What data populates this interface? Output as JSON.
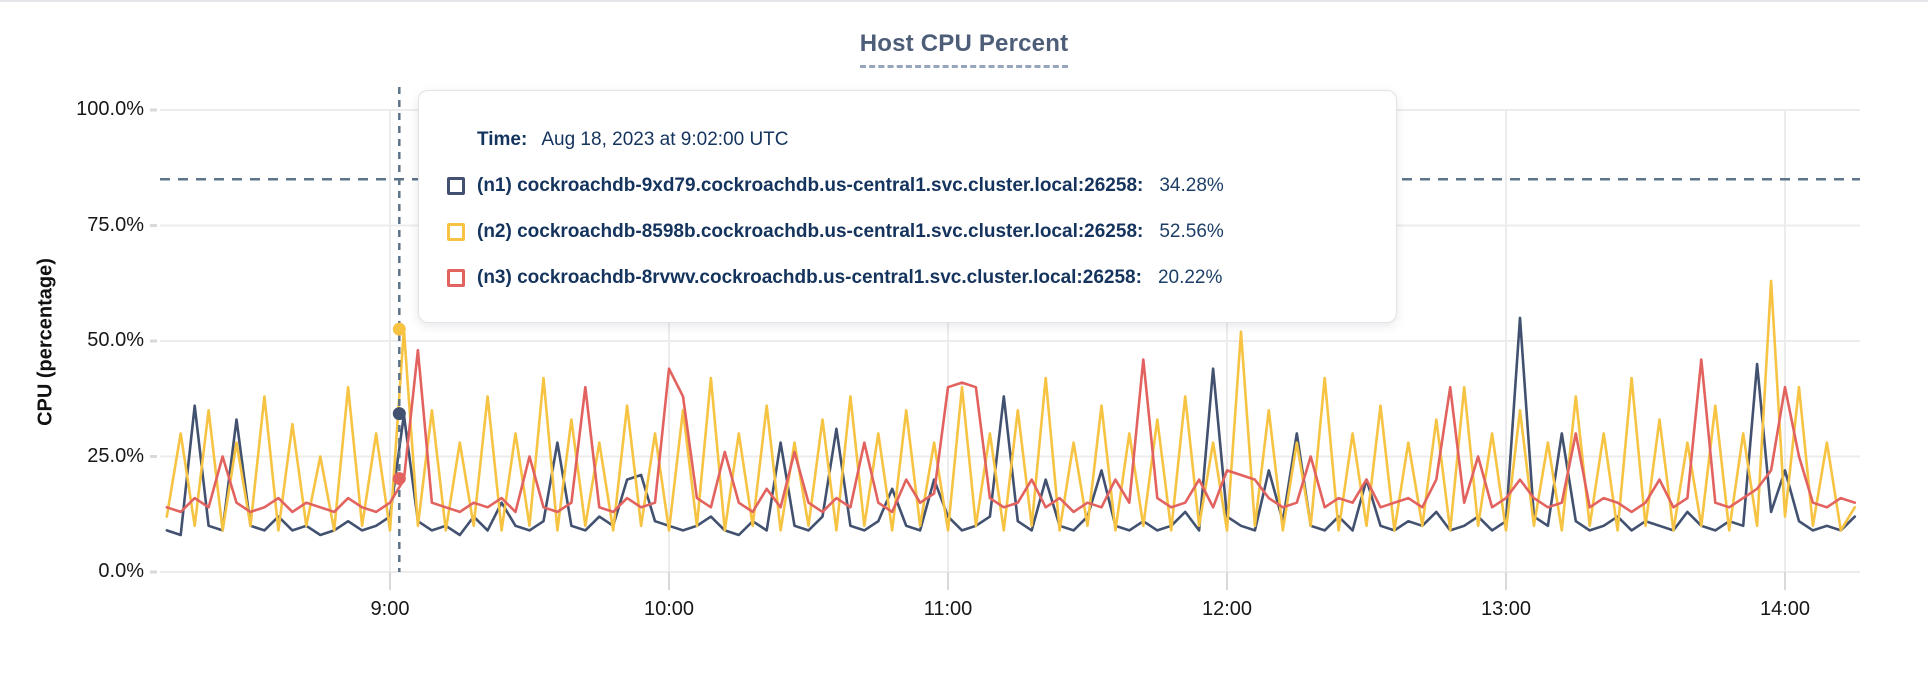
{
  "title": "Host CPU Percent",
  "y_axis": {
    "label": "CPU (percentage)",
    "ticks": [
      {
        "label": "0.0%",
        "value": 0
      },
      {
        "label": "25.0%",
        "value": 25
      },
      {
        "label": "50.0%",
        "value": 50
      },
      {
        "label": "75.0%",
        "value": 75
      },
      {
        "label": "100.0%",
        "value": 100
      }
    ]
  },
  "x_axis": {
    "ticks": [
      {
        "label": "9:00",
        "minutes": 540
      },
      {
        "label": "10:00",
        "minutes": 600
      },
      {
        "label": "11:00",
        "minutes": 660
      },
      {
        "label": "12:00",
        "minutes": 720
      },
      {
        "label": "13:00",
        "minutes": 780
      },
      {
        "label": "14:00",
        "minutes": 840
      }
    ]
  },
  "colors": {
    "n1": "#41516f",
    "n2": "#f6c343",
    "n3": "#e2625f",
    "grid": "#ececec",
    "tick": "#d9d9d9",
    "dashed_guide": "#5d7389",
    "tooltip_text": "#14335d",
    "title": "#4e5e79"
  },
  "threshold_percent": 85,
  "tooltip": {
    "time_label": "Time:",
    "time_value": "Aug 18, 2023 at 9:02:00 UTC",
    "rows": [
      {
        "series": "n1",
        "label": "(n1) cockroachdb-9xd79.cockroachdb.us-central1.svc.cluster.local:26258:",
        "value": "34.28%",
        "percent": 34.28,
        "color": "#41516f"
      },
      {
        "series": "n2",
        "label": "(n2) cockroachdb-8598b.cockroachdb.us-central1.svc.cluster.local:26258:",
        "value": "52.56%",
        "percent": 52.56,
        "color": "#f6c343"
      },
      {
        "series": "n3",
        "label": "(n3) cockroachdb-8rvwv.cockroachdb.us-central1.svc.cluster.local:26258:",
        "value": "20.22%",
        "percent": 20.22,
        "color": "#e2625f"
      }
    ]
  },
  "hover": {
    "time_minutes": 542
  },
  "chart_data": {
    "type": "line",
    "title": "Host CPU Percent",
    "xlabel": "",
    "ylabel": "CPU (percentage)",
    "ylim": [
      0,
      100
    ],
    "x_tick_labels": [
      "9:00",
      "10:00",
      "11:00",
      "12:00",
      "13:00",
      "14:00"
    ],
    "grid": true,
    "legend_position": "tooltip-overlay",
    "threshold_dashed_line_percent": 85,
    "hover_time_minutes": 542,
    "x_start_minutes": 492,
    "x_step_minutes": 3,
    "series": [
      {
        "name": "(n1) cockroachdb-9xd79.cockroachdb.us-central1.svc.cluster.local:26258",
        "color": "#41516f",
        "hover_value": 34.28,
        "values": [
          9,
          8,
          36,
          10,
          9,
          33,
          10,
          9,
          12,
          9,
          10,
          8,
          9,
          11,
          9,
          10,
          12,
          34,
          11,
          9,
          10,
          8,
          12,
          9,
          15,
          10,
          9,
          11,
          28,
          10,
          9,
          12,
          10,
          20,
          21,
          11,
          10,
          9,
          10,
          12,
          9,
          8,
          11,
          9,
          28,
          10,
          9,
          12,
          31,
          10,
          9,
          11,
          18,
          10,
          9,
          20,
          12,
          9,
          10,
          12,
          38,
          11,
          9,
          20,
          10,
          9,
          12,
          22,
          10,
          9,
          11,
          9,
          10,
          13,
          9,
          44,
          12,
          10,
          9,
          22,
          11,
          30,
          10,
          9,
          12,
          9,
          20,
          10,
          9,
          11,
          10,
          13,
          9,
          10,
          12,
          9,
          11,
          55,
          12,
          10,
          30,
          11,
          9,
          10,
          12,
          9,
          11,
          10,
          9,
          13,
          10,
          9,
          11,
          10,
          45,
          13,
          22,
          11,
          9,
          10,
          9,
          12
        ]
      },
      {
        "name": "(n2) cockroachdb-8598b.cockroachdb.us-central1.svc.cluster.local:26258",
        "color": "#f6c343",
        "hover_value": 52.56,
        "values": [
          12,
          30,
          10,
          35,
          9,
          28,
          10,
          38,
          9,
          32,
          10,
          25,
          9,
          40,
          10,
          30,
          9,
          52.5,
          10,
          35,
          9,
          28,
          10,
          38,
          9,
          30,
          10,
          42,
          9,
          33,
          10,
          28,
          9,
          36,
          10,
          30,
          9,
          35,
          10,
          42,
          9,
          30,
          10,
          36,
          9,
          28,
          10,
          33,
          9,
          38,
          10,
          30,
          9,
          35,
          10,
          28,
          9,
          40,
          10,
          30,
          9,
          35,
          10,
          42,
          9,
          28,
          10,
          36,
          9,
          30,
          10,
          33,
          9,
          38,
          10,
          28,
          9,
          52,
          10,
          35,
          9,
          28,
          10,
          42,
          9,
          30,
          10,
          36,
          9,
          28,
          10,
          33,
          9,
          40,
          10,
          30,
          9,
          35,
          10,
          28,
          9,
          38,
          10,
          30,
          9,
          42,
          10,
          33,
          9,
          28,
          10,
          36,
          9,
          30,
          10,
          63,
          12,
          40,
          10,
          28,
          9,
          14
        ]
      },
      {
        "name": "(n3) cockroachdb-8rvwv.cockroachdb.us-central1.svc.cluster.local:26258",
        "color": "#e2625f",
        "hover_value": 20.22,
        "values": [
          14,
          13,
          16,
          14,
          25,
          15,
          13,
          14,
          16,
          13,
          15,
          14,
          13,
          16,
          14,
          13,
          15,
          20,
          48,
          15,
          14,
          13,
          15,
          14,
          16,
          13,
          25,
          14,
          13,
          15,
          40,
          14,
          13,
          16,
          14,
          15,
          44,
          38,
          16,
          14,
          26,
          15,
          13,
          18,
          14,
          26,
          15,
          13,
          16,
          14,
          28,
          15,
          13,
          20,
          15,
          17,
          40,
          41,
          40,
          16,
          14,
          15,
          20,
          14,
          16,
          13,
          15,
          14,
          20,
          15,
          46,
          16,
          14,
          15,
          20,
          14,
          22,
          21,
          20,
          16,
          14,
          15,
          25,
          14,
          16,
          15,
          20,
          14,
          15,
          16,
          14,
          20,
          40,
          15,
          25,
          14,
          16,
          20,
          16,
          14,
          15,
          30,
          14,
          16,
          15,
          13,
          15,
          20,
          14,
          16,
          46,
          15,
          14,
          16,
          18,
          22,
          40,
          25,
          15,
          14,
          16,
          15
        ]
      }
    ]
  }
}
